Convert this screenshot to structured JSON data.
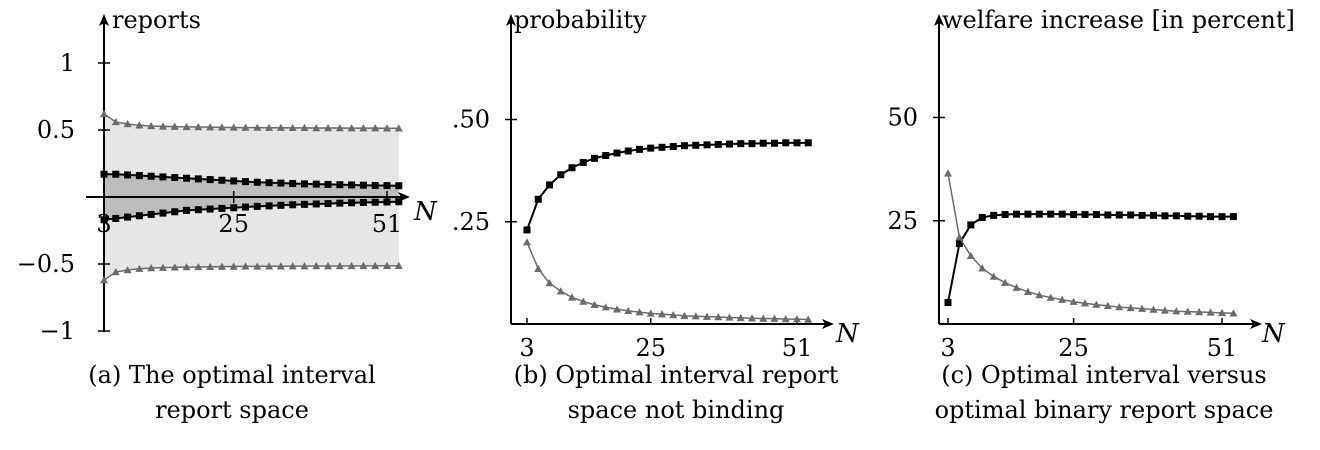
{
  "chart_data": [
    {
      "id": "a",
      "type": "line",
      "caption": [
        "(a) The optimal interval",
        "report space"
      ],
      "ylabel": "reports",
      "xlabel": "N",
      "xticks": [
        3,
        25,
        51
      ],
      "xtick_labels": [
        "3",
        "25",
        "51"
      ],
      "yticks": [
        1,
        0.5,
        -0.5,
        -1
      ],
      "ytick_labels": [
        "1",
        "0.5",
        "−0.5",
        "−1"
      ],
      "xlim": [
        3,
        53
      ],
      "ylim": [
        -1.05,
        1.05
      ],
      "shaded_band": true,
      "series": [
        {
          "role": "upper-bound",
          "marker": "triangle",
          "color": "#6b6b6b",
          "x": [
            3,
            5,
            7,
            9,
            11,
            13,
            15,
            17,
            19,
            21,
            23,
            25,
            27,
            29,
            31,
            33,
            35,
            37,
            39,
            41,
            43,
            45,
            47,
            49,
            51,
            53
          ],
          "y": [
            0.62,
            0.56,
            0.545,
            0.535,
            0.53,
            0.527,
            0.525,
            0.523,
            0.522,
            0.521,
            0.52,
            0.519,
            0.518,
            0.518,
            0.517,
            0.517,
            0.516,
            0.516,
            0.515,
            0.515,
            0.515,
            0.514,
            0.514,
            0.514,
            0.513,
            0.513
          ]
        },
        {
          "role": "upper-interval",
          "marker": "square",
          "color": "#000000",
          "x": [
            3,
            5,
            7,
            9,
            11,
            13,
            15,
            17,
            19,
            21,
            23,
            25,
            27,
            29,
            31,
            33,
            35,
            37,
            39,
            41,
            43,
            45,
            47,
            49,
            51,
            53
          ],
          "y": [
            0.17,
            0.17,
            0.165,
            0.16,
            0.155,
            0.15,
            0.145,
            0.14,
            0.135,
            0.13,
            0.125,
            0.12,
            0.115,
            0.11,
            0.107,
            0.104,
            0.101,
            0.098,
            0.096,
            0.094,
            0.092,
            0.09,
            0.088,
            0.086,
            0.085,
            0.084
          ]
        },
        {
          "role": "lower-interval",
          "marker": "square",
          "color": "#000000",
          "x": [
            3,
            5,
            7,
            9,
            11,
            13,
            15,
            17,
            19,
            21,
            23,
            25,
            27,
            29,
            31,
            33,
            35,
            37,
            39,
            41,
            43,
            45,
            47,
            49,
            51,
            53
          ],
          "y": [
            -0.17,
            -0.16,
            -0.15,
            -0.14,
            -0.13,
            -0.12,
            -0.11,
            -0.1,
            -0.095,
            -0.09,
            -0.085,
            -0.08,
            -0.075,
            -0.07,
            -0.066,
            -0.062,
            -0.058,
            -0.055,
            -0.052,
            -0.049,
            -0.046,
            -0.043,
            -0.041,
            -0.039,
            -0.037,
            -0.035
          ]
        },
        {
          "role": "lower-bound",
          "marker": "triangle",
          "color": "#6b6b6b",
          "x": [
            3,
            5,
            7,
            9,
            11,
            13,
            15,
            17,
            19,
            21,
            23,
            25,
            27,
            29,
            31,
            33,
            35,
            37,
            39,
            41,
            43,
            45,
            47,
            49,
            51,
            53
          ],
          "y": [
            -0.62,
            -0.56,
            -0.545,
            -0.535,
            -0.53,
            -0.527,
            -0.525,
            -0.523,
            -0.522,
            -0.521,
            -0.52,
            -0.519,
            -0.518,
            -0.518,
            -0.517,
            -0.517,
            -0.516,
            -0.516,
            -0.515,
            -0.515,
            -0.515,
            -0.514,
            -0.514,
            -0.514,
            -0.513,
            -0.513
          ]
        }
      ]
    },
    {
      "id": "b",
      "type": "line",
      "caption": [
        "(b) Optimal interval report",
        "space not binding"
      ],
      "ylabel": "probability",
      "xlabel": "N",
      "xticks": [
        3,
        25,
        51
      ],
      "xtick_labels": [
        "3",
        "25",
        "51"
      ],
      "yticks": [
        0.5,
        0.25
      ],
      "ytick_labels": [
        ".50",
        ".25"
      ],
      "xlim": [
        0,
        56
      ],
      "ylim": [
        0,
        0.73
      ],
      "series": [
        {
          "role": "upper",
          "marker": "square",
          "color": "#000000",
          "x": [
            3,
            5,
            7,
            9,
            11,
            13,
            15,
            17,
            19,
            21,
            23,
            25,
            27,
            29,
            31,
            33,
            35,
            37,
            39,
            41,
            43,
            45,
            47,
            49,
            51,
            53
          ],
          "y": [
            0.23,
            0.305,
            0.34,
            0.365,
            0.382,
            0.395,
            0.405,
            0.412,
            0.418,
            0.423,
            0.427,
            0.43,
            0.432,
            0.434,
            0.436,
            0.437,
            0.438,
            0.439,
            0.44,
            0.441,
            0.441,
            0.442,
            0.442,
            0.443,
            0.443,
            0.443
          ]
        },
        {
          "role": "lower",
          "marker": "triangle",
          "color": "#6b6b6b",
          "x": [
            3,
            5,
            7,
            9,
            11,
            13,
            15,
            17,
            19,
            21,
            23,
            25,
            27,
            29,
            31,
            33,
            35,
            37,
            39,
            41,
            43,
            45,
            47,
            49,
            51,
            53
          ],
          "y": [
            0.2,
            0.135,
            0.1,
            0.08,
            0.065,
            0.055,
            0.047,
            0.041,
            0.036,
            0.032,
            0.029,
            0.026,
            0.024,
            0.022,
            0.02,
            0.019,
            0.018,
            0.017,
            0.016,
            0.015,
            0.014,
            0.013,
            0.013,
            0.012,
            0.012,
            0.011
          ]
        }
      ]
    },
    {
      "id": "c",
      "type": "line",
      "caption": [
        "(c) Optimal interval versus",
        "optimal binary report space"
      ],
      "ylabel": "welfare increase [in percent]",
      "xlabel": "N",
      "xticks": [
        3,
        25,
        51
      ],
      "xtick_labels": [
        "3",
        "25",
        "51"
      ],
      "yticks": [
        50,
        25
      ],
      "ytick_labels": [
        "50",
        "25"
      ],
      "xlim": [
        0,
        56
      ],
      "ylim": [
        0,
        73
      ],
      "series": [
        {
          "role": "interval-vs-binary",
          "marker": "square",
          "color": "#000000",
          "x": [
            3,
            5,
            7,
            9,
            11,
            13,
            15,
            17,
            19,
            21,
            23,
            25,
            27,
            29,
            31,
            33,
            35,
            37,
            39,
            41,
            43,
            45,
            47,
            49,
            51,
            53
          ],
          "y": [
            5.2,
            19.5,
            24,
            25.8,
            26.3,
            26.5,
            26.6,
            26.6,
            26.6,
            26.6,
            26.6,
            26.5,
            26.5,
            26.5,
            26.4,
            26.4,
            26.4,
            26.3,
            26.3,
            26.2,
            26.2,
            26.1,
            26.1,
            26,
            26,
            26
          ]
        },
        {
          "role": "binary",
          "marker": "triangle",
          "color": "#6b6b6b",
          "x": [
            3,
            5,
            7,
            9,
            11,
            13,
            15,
            17,
            19,
            21,
            23,
            25,
            27,
            29,
            31,
            33,
            35,
            37,
            39,
            41,
            43,
            45,
            47,
            49,
            51,
            53
          ],
          "y": [
            36.5,
            21,
            16.5,
            13.5,
            11.5,
            10,
            8.8,
            7.8,
            7,
            6.4,
            5.9,
            5.4,
            5,
            4.7,
            4.4,
            4.1,
            3.9,
            3.7,
            3.5,
            3.3,
            3.1,
            3,
            2.9,
            2.8,
            2.7,
            2.6
          ]
        }
      ]
    }
  ]
}
